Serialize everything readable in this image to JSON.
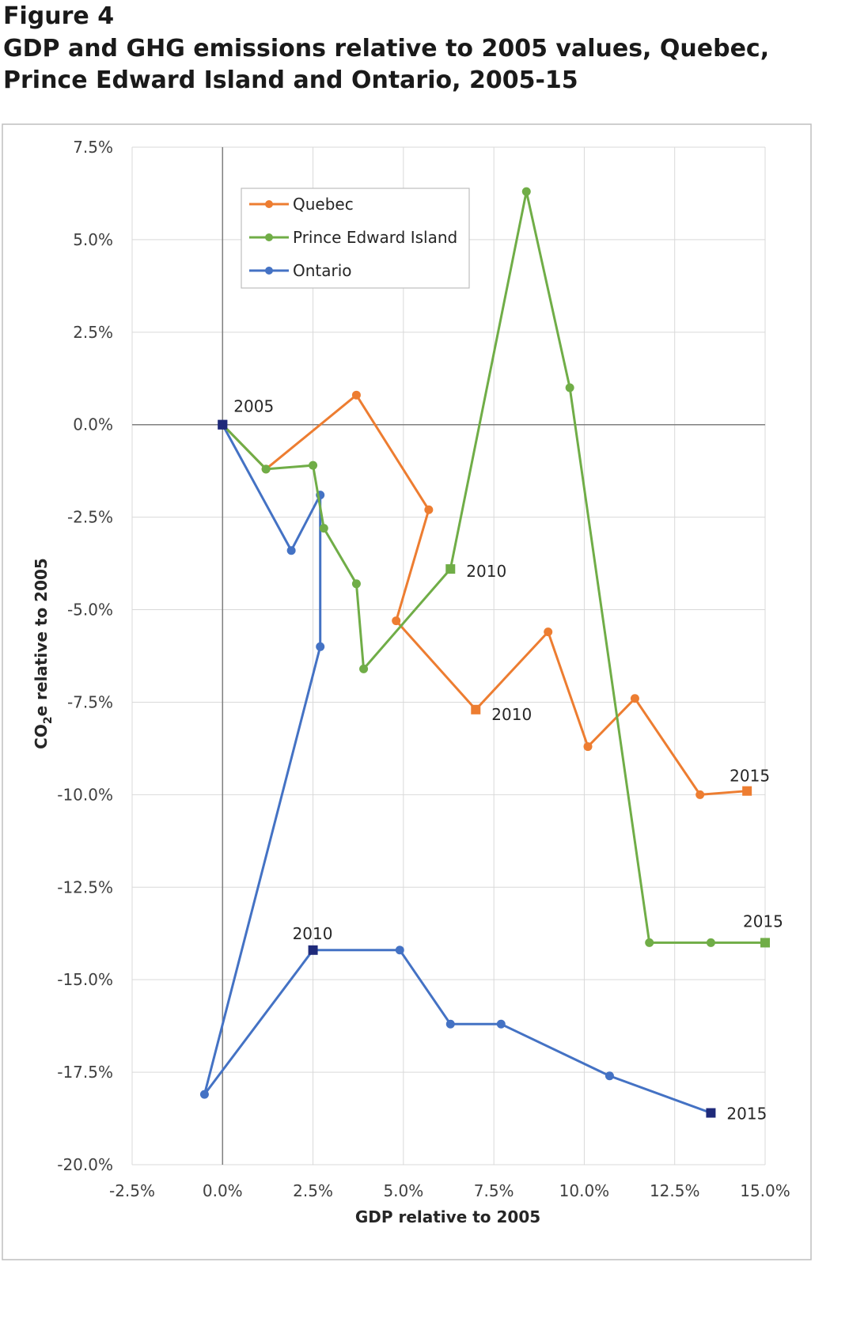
{
  "figure_label": "Figure 4",
  "figure_title": "GDP and GHG emissions relative to 2005 values, Quebec, Prince Edward Island and Ontario, 2005-15",
  "chart_data": {
    "type": "line",
    "xlabel": "GDP relative to 2005",
    "ylabel": "CO2e relative to 2005",
    "xlim": [
      -2.5,
      15.0
    ],
    "ylim": [
      -20.0,
      7.5
    ],
    "x_ticks": [
      "-2.5%",
      "0.0%",
      "2.5%",
      "5.0%",
      "7.5%",
      "10.0%",
      "12.5%",
      "15.0%"
    ],
    "y_ticks": [
      "7.5%",
      "5.0%",
      "2.5%",
      "0.0%",
      "-2.5%",
      "-5.0%",
      "-7.5%",
      "-10.0%",
      "-12.5%",
      "-15.0%",
      "-17.5%",
      "-20.0%"
    ],
    "grid": true,
    "legend_position": "top-left",
    "series": [
      {
        "name": "Quebec",
        "color": "#ed7d31",
        "points": [
          [
            0.0,
            0.0
          ],
          [
            1.2,
            -1.2
          ],
          [
            3.7,
            0.8
          ],
          [
            5.7,
            -2.3
          ],
          [
            4.8,
            -5.3
          ],
          [
            7.0,
            -7.7
          ],
          [
            9.0,
            -5.6
          ],
          [
            10.1,
            -8.7
          ],
          [
            11.4,
            -7.4
          ],
          [
            13.2,
            -10.0
          ],
          [
            14.5,
            -9.9
          ]
        ],
        "square_indices": [
          5,
          10
        ]
      },
      {
        "name": "Prince Edward Island",
        "color": "#70ad47",
        "points": [
          [
            0.0,
            0.0
          ],
          [
            1.2,
            -1.2
          ],
          [
            2.5,
            -1.1
          ],
          [
            2.8,
            -2.8
          ],
          [
            3.7,
            -4.3
          ],
          [
            3.9,
            -6.6
          ],
          [
            6.3,
            -3.9
          ],
          [
            8.4,
            6.3
          ],
          [
            9.6,
            1.0
          ],
          [
            11.8,
            -14.0
          ],
          [
            13.5,
            -14.0
          ],
          [
            15.0,
            -14.0
          ]
        ],
        "square_indices": [
          6,
          11
        ]
      },
      {
        "name": "Ontario",
        "color": "#4472c4",
        "points": [
          [
            0.0,
            0.0
          ],
          [
            1.9,
            -3.4
          ],
          [
            2.7,
            -1.9
          ],
          [
            2.7,
            -6.0
          ],
          [
            -0.5,
            -18.1
          ],
          [
            2.5,
            -14.2
          ],
          [
            4.9,
            -14.2
          ],
          [
            6.3,
            -16.2
          ],
          [
            7.7,
            -16.2
          ],
          [
            10.7,
            -17.6
          ],
          [
            13.5,
            -18.6
          ]
        ],
        "square_indices": [
          0,
          5,
          10
        ]
      }
    ],
    "annotations": [
      {
        "text": "2005",
        "x": 0.0,
        "y": 0.0
      },
      {
        "text": "2010",
        "x": 6.3,
        "y": -3.9
      },
      {
        "text": "2010",
        "x": 7.0,
        "y": -7.7
      },
      {
        "text": "2010",
        "x": 2.5,
        "y": -14.2
      },
      {
        "text": "2015",
        "x": 14.5,
        "y": -9.9
      },
      {
        "text": "2015",
        "x": 15.0,
        "y": -14.0
      },
      {
        "text": "2015",
        "x": 13.5,
        "y": -18.6
      }
    ]
  }
}
